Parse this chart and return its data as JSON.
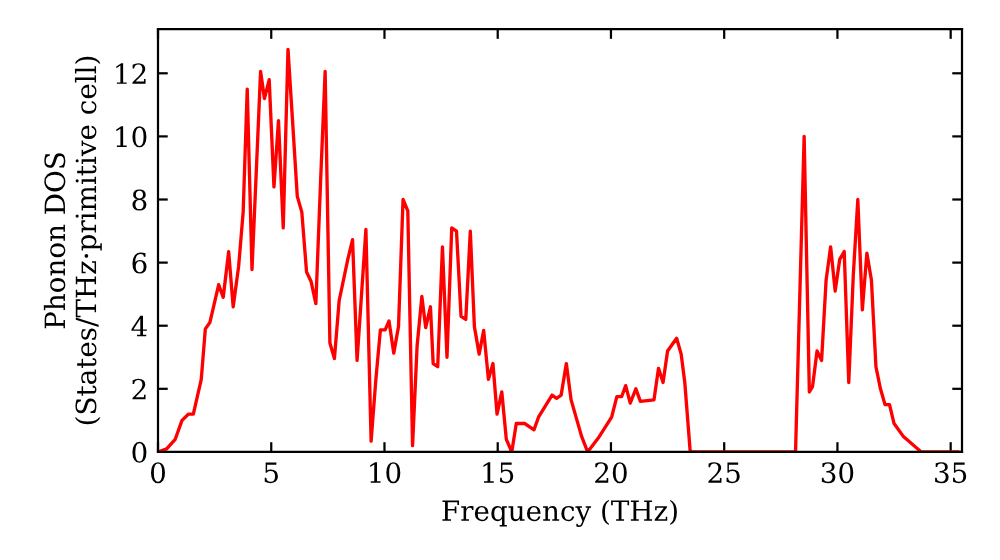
{
  "chart_data": {
    "type": "line",
    "xlabel": "Frequency (THz)",
    "ylabel": "Phonon DOS\n(States/THz·primitive cell)",
    "xlim": [
      0,
      35.5
    ],
    "ylim": [
      0,
      13.4
    ],
    "xticks": [
      0,
      5,
      10,
      15,
      20,
      25,
      30,
      35
    ],
    "yticks": [
      0,
      2,
      4,
      6,
      8,
      10,
      12
    ],
    "grid": false,
    "legend": false,
    "marker": "none",
    "line_style": "solid",
    "series": [
      {
        "color": "#ff0000",
        "x": [
          0,
          0.38,
          0.76,
          1.06,
          1.35,
          1.56,
          1.91,
          2.09,
          2.29,
          2.68,
          2.88,
          3.12,
          3.32,
          3.56,
          3.76,
          3.94,
          4.15,
          4.35,
          4.53,
          4.7,
          4.91,
          5.12,
          5.32,
          5.53,
          5.74,
          5.94,
          6.15,
          6.35,
          6.56,
          6.76,
          6.97,
          7.18,
          7.38,
          7.59,
          7.79,
          8.0,
          8.38,
          8.59,
          8.79,
          9.18,
          9.41,
          9.62,
          9.82,
          10.03,
          10.2,
          10.41,
          10.62,
          10.82,
          11.03,
          11.24,
          11.44,
          11.65,
          11.82,
          12.03,
          12.15,
          12.35,
          12.56,
          12.76,
          12.97,
          13.18,
          13.38,
          13.59,
          13.79,
          13.97,
          14.18,
          14.38,
          14.59,
          14.79,
          14.97,
          15.18,
          15.38,
          15.62,
          15.82,
          16.2,
          16.6,
          16.8,
          17.4,
          17.6,
          17.8,
          18.03,
          18.24,
          18.7,
          18.97,
          19.44,
          20.03,
          20.26,
          20.47,
          20.65,
          20.85,
          21.1,
          21.3,
          21.9,
          22.1,
          22.3,
          22.5,
          22.9,
          23.1,
          23.26,
          23.5,
          28.15,
          28.53,
          28.76,
          28.9,
          29.1,
          29.3,
          29.5,
          29.7,
          29.9,
          30.1,
          30.3,
          30.5,
          30.7,
          30.9,
          31.1,
          31.3,
          31.5,
          31.7,
          31.9,
          32.1,
          32.3,
          32.5,
          32.9,
          33.7,
          35.3
        ],
        "values": [
          0,
          0.1,
          0.4,
          1.0,
          1.2,
          1.2,
          2.3,
          3.9,
          4.1,
          5.3,
          4.9,
          6.35,
          4.6,
          5.88,
          7.6,
          11.5,
          5.78,
          9.06,
          12.06,
          11.2,
          11.8,
          8.4,
          10.5,
          7.1,
          12.76,
          10.5,
          8.1,
          7.6,
          5.7,
          5.4,
          4.7,
          8.6,
          12.06,
          3.45,
          2.96,
          4.8,
          6.1,
          6.73,
          2.9,
          7.05,
          0.34,
          2.3,
          3.87,
          3.87,
          4.15,
          3.13,
          3.98,
          8.0,
          7.64,
          0.2,
          3.35,
          4.93,
          3.94,
          4.6,
          2.8,
          2.7,
          6.5,
          3.0,
          7.1,
          7.0,
          4.3,
          4.2,
          7.0,
          3.97,
          3.1,
          3.85,
          2.3,
          2.8,
          1.2,
          1.9,
          0.4,
          0,
          0.9,
          0.9,
          0.7,
          1.1,
          1.8,
          1.7,
          1.8,
          2.8,
          1.65,
          0.5,
          0,
          0.44,
          1.1,
          1.75,
          1.75,
          2.1,
          1.55,
          2.0,
          1.6,
          1.65,
          2.65,
          2.2,
          3.2,
          3.6,
          3.1,
          2.2,
          0,
          0,
          10.0,
          1.9,
          2.07,
          3.2,
          2.9,
          5.45,
          6.5,
          5.1,
          6.1,
          6.35,
          2.2,
          5.6,
          8.0,
          4.5,
          6.3,
          5.45,
          2.7,
          2.0,
          1.5,
          1.5,
          0.9,
          0.5,
          0,
          0
        ]
      }
    ]
  }
}
